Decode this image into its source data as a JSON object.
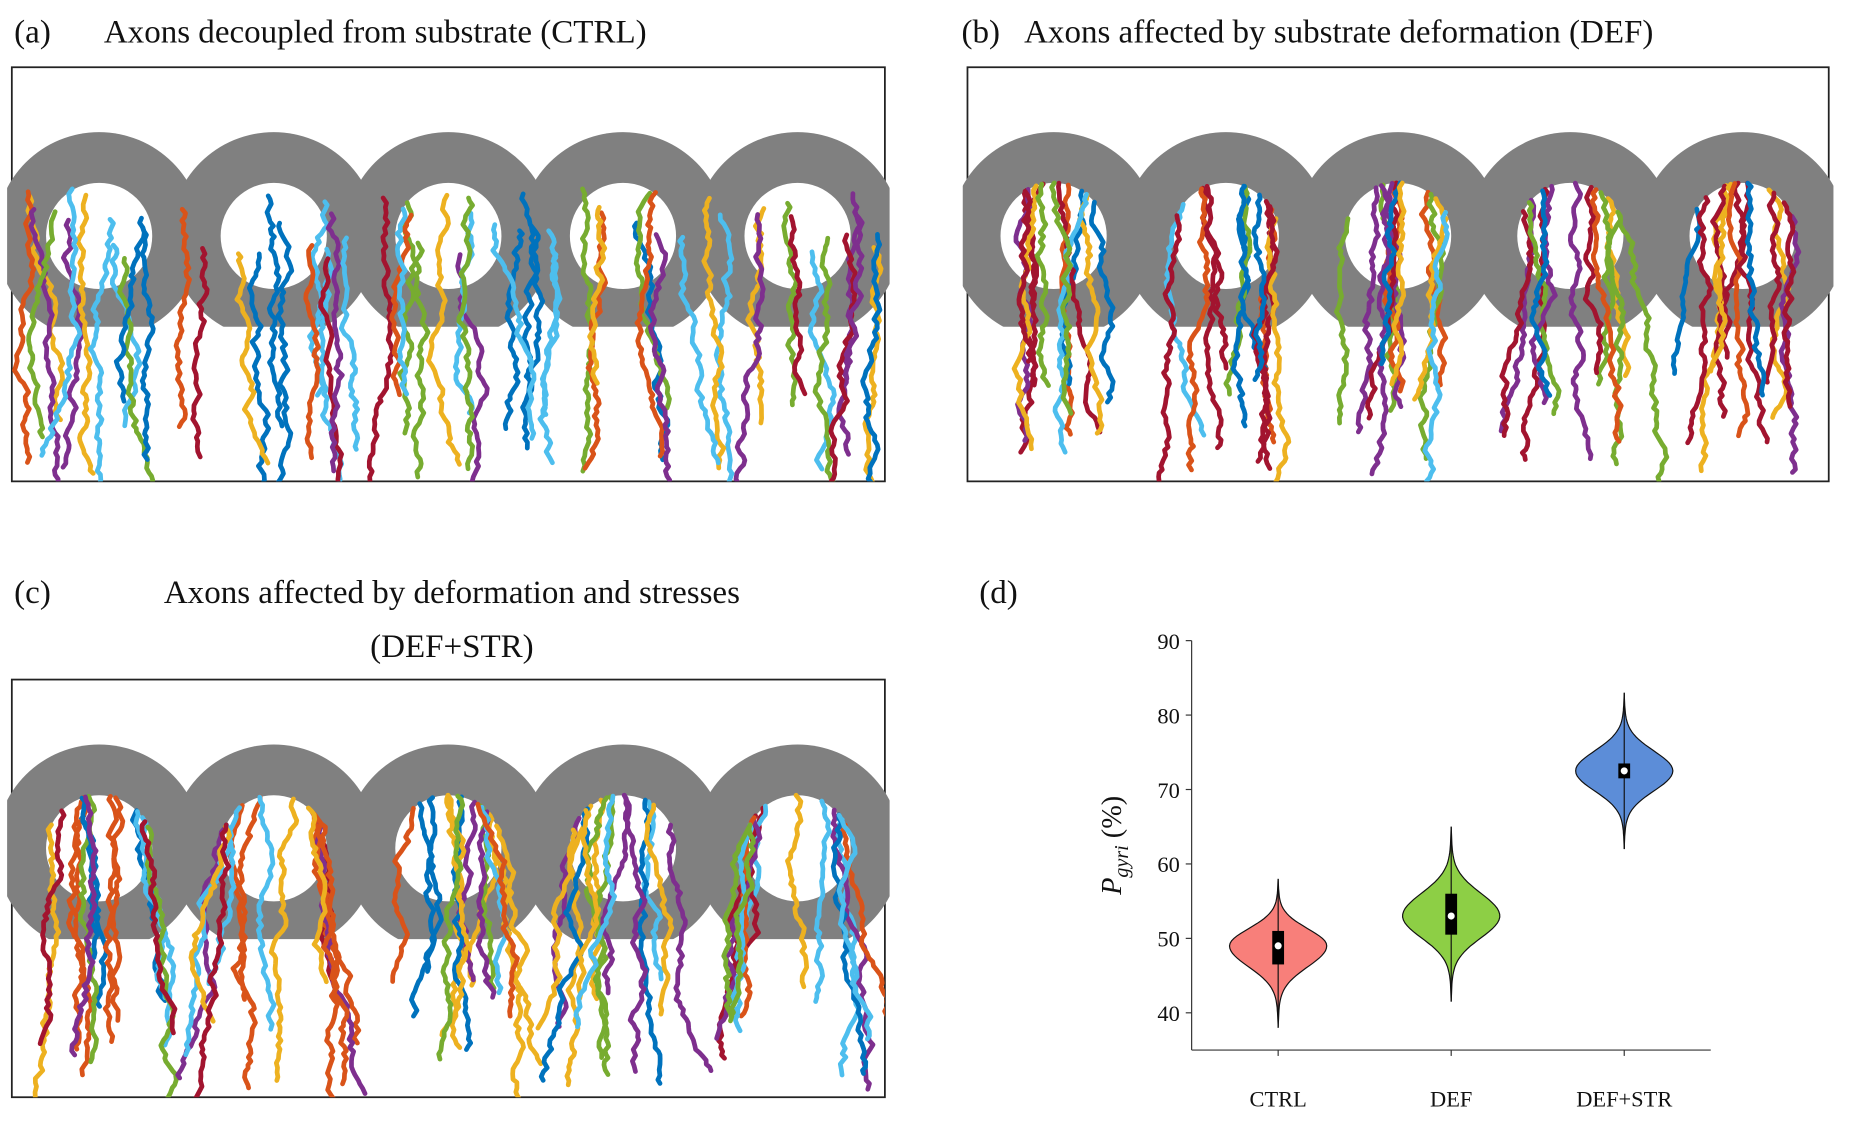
{
  "panels": [
    {
      "label": "(a)",
      "title": "Axons decoupled from substrate (CTRL)"
    },
    {
      "label": "(b)",
      "title": "Axons affected by substrate deformation (DEF)"
    },
    {
      "label": "(c)",
      "title": [
        "Axons affected by deformation and stresses",
        "(DEF+STR)"
      ]
    }
  ],
  "chart_data": {
    "type": "violin",
    "label": "(d)",
    "ylabel": {
      "main": "P",
      "sub": "gyri",
      "unit": "(%)"
    },
    "categories": [
      "CTRL",
      "DEF",
      "DEF+STR"
    ],
    "colors": [
      "#f87f7a",
      "#8dcf45",
      "#5c8dd8"
    ],
    "min": [
      38,
      41.5,
      62
    ],
    "q1": [
      46.5,
      50.5,
      71.5
    ],
    "median": [
      49,
      53,
      72.5
    ],
    "q3": [
      51,
      56,
      73.5
    ],
    "max": [
      58,
      65,
      83
    ],
    "ylim": [
      35,
      90
    ],
    "yticks": [
      40,
      50,
      60,
      70,
      80,
      90
    ]
  }
}
